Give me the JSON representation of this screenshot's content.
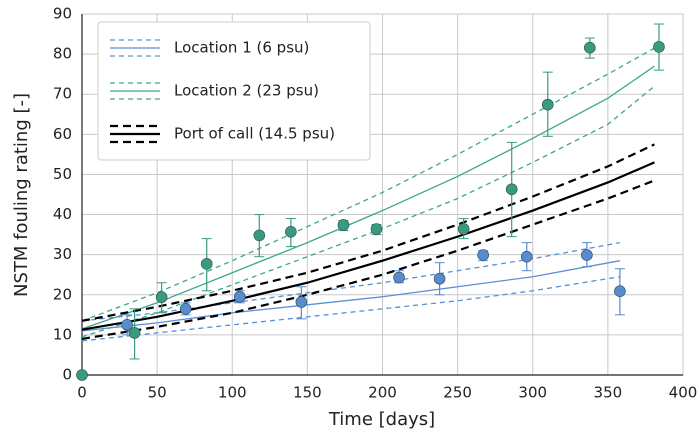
{
  "chart_data": {
    "type": "scatter",
    "xlabel": "Time [days]",
    "ylabel": "NSTM fouling rating [-]",
    "xlim": [
      0,
      400
    ],
    "xticks": [
      0,
      50,
      100,
      150,
      200,
      250,
      300,
      350,
      400
    ],
    "ylim": [
      0,
      90
    ],
    "yticks": [
      0,
      10,
      20,
      30,
      40,
      50,
      60,
      70,
      80,
      90
    ],
    "grid": true,
    "legend": "upper left",
    "fits": [
      {
        "name": "Location 1 (6 psu)",
        "color": "#5b8fd6",
        "linewidth": 1.3,
        "x": [
          0,
          50,
          100,
          150,
          200,
          250,
          300,
          358
        ],
        "values": [
          11,
          13,
          15.5,
          17.5,
          19.5,
          22,
          24.5,
          28.5
        ],
        "upper": [
          13.5,
          15.5,
          18,
          20.5,
          23,
          26,
          29,
          33
        ],
        "lower": [
          8.5,
          10.5,
          12.5,
          14.5,
          16.5,
          18.5,
          21,
          24.5
        ]
      },
      {
        "name": "Location 2 (23 psu)",
        "color": "#3aa88a",
        "linewidth": 1.3,
        "x": [
          0,
          50,
          100,
          150,
          200,
          250,
          300,
          350,
          381
        ],
        "values": [
          11.5,
          18,
          25.5,
          33,
          41,
          49.5,
          59,
          69,
          77
        ],
        "upper": [
          13.5,
          20.5,
          28.5,
          37,
          45.5,
          55,
          65,
          75,
          81.5
        ],
        "lower": [
          9.5,
          15.5,
          22.5,
          29.5,
          36.5,
          44,
          53,
          62.5,
          72
        ]
      },
      {
        "name": "Port of call (14.5 psu)",
        "color": "#000000",
        "linewidth": 2.2,
        "x": [
          0,
          50,
          100,
          150,
          200,
          250,
          300,
          350,
          381
        ],
        "values": [
          11.3,
          14.5,
          18.5,
          23,
          28.5,
          34.5,
          41,
          48,
          53
        ],
        "upper": [
          13.5,
          17,
          21,
          25.5,
          31,
          37.5,
          44.5,
          52,
          57.5
        ],
        "lower": [
          9,
          12,
          15.5,
          20,
          25,
          31,
          37.5,
          44,
          48.5
        ]
      }
    ],
    "points": [
      {
        "color": "#5a8ad0",
        "x": [
          30,
          69,
          105,
          146,
          211,
          238,
          267,
          296,
          336,
          358
        ],
        "values": [
          12.5,
          16.5,
          19.5,
          18.2,
          24.3,
          24,
          29.9,
          29.5,
          29.9,
          20.9
        ],
        "err_low": [
          10,
          15,
          18,
          14,
          23,
          20,
          28.5,
          26,
          27,
          15
        ],
        "err_high": [
          15,
          18,
          21,
          22,
          26,
          28,
          31,
          33,
          33,
          26.5
        ]
      },
      {
        "color": "#3a9a80",
        "x": [
          0,
          35,
          53,
          83,
          118,
          139,
          174,
          196,
          254,
          286,
          310,
          338,
          384
        ],
        "values": [
          0,
          10.5,
          19.4,
          27.7,
          34.8,
          35.7,
          37.4,
          36.4,
          36.4,
          46.3,
          67.4,
          81.6,
          81.8
        ],
        "err_low": [
          null,
          4,
          15.5,
          21,
          29.5,
          32,
          36,
          35,
          34,
          34.5,
          59.5,
          79,
          76
        ],
        "err_high": [
          null,
          16.5,
          23,
          34,
          40,
          39,
          38.5,
          37.5,
          39,
          58,
          75.5,
          84,
          87.5
        ]
      }
    ]
  }
}
